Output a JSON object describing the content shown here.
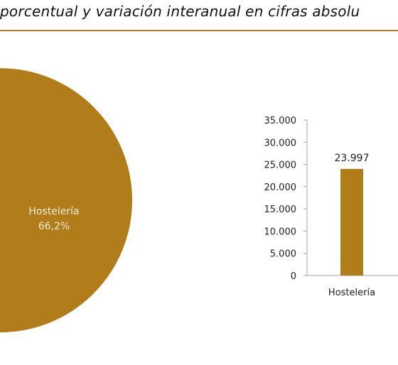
{
  "header": {
    "title": "porcentual y variación interanual en cifras absolu"
  },
  "colors": {
    "accent": "#b07d1a",
    "bar": "#b07d1a",
    "axis": "#a6a6a6",
    "slice_label": "#f3ead8"
  },
  "chart_data": [
    {
      "type": "pie",
      "labels": [
        "Hostelería"
      ],
      "values": [
        66.2
      ],
      "value_labels": [
        "66,2%"
      ],
      "unit": "%"
    },
    {
      "type": "bar",
      "categories": [
        "Hostelería"
      ],
      "values": [
        23997
      ],
      "value_labels": [
        "23.997"
      ],
      "ylim": [
        0,
        35000
      ],
      "yticks": [
        0,
        5000,
        10000,
        15000,
        20000,
        25000,
        30000,
        35000
      ],
      "ytick_labels": [
        "0",
        "5.000",
        "10.000",
        "15.000",
        "20.000",
        "25.000",
        "30.000",
        "35.000"
      ],
      "xlabel": "",
      "ylabel": ""
    }
  ]
}
